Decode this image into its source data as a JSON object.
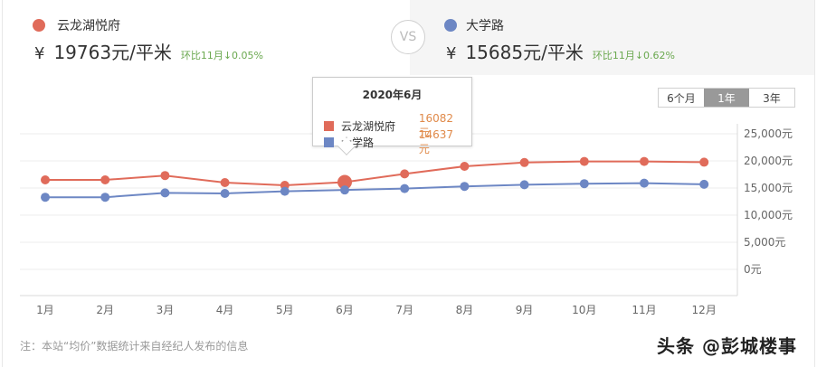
{
  "compare": {
    "left": {
      "name": "云龙湖悦府",
      "currency": "¥",
      "price": "19763元/平米",
      "change": "环比11月↓0.05%",
      "color": "#e06b5a"
    },
    "vs_label": "VS",
    "right": {
      "name": "大学路",
      "currency": "¥",
      "price": "15685元/平米",
      "change": "环比11月↓0.62%",
      "color": "#6d87c4"
    }
  },
  "range_tabs": [
    {
      "label": "6个月",
      "active": false
    },
    {
      "label": "1年",
      "active": true
    },
    {
      "label": "3年",
      "active": false
    }
  ],
  "tooltip": {
    "title": "2020年6月",
    "rows": [
      {
        "name": "云龙湖悦府",
        "value": "16082元",
        "color": "#e06b5a"
      },
      {
        "name": "大学路",
        "value": "14637元",
        "color": "#6d87c4"
      }
    ]
  },
  "note": "注：本站“均价”数据统计来自经纪人发布的信息",
  "watermark": "头条 @彭城楼事",
  "chart_data": {
    "type": "line",
    "title": "",
    "xlabel": "",
    "ylabel": "",
    "categories": [
      "1月",
      "2月",
      "3月",
      "4月",
      "5月",
      "6月",
      "7月",
      "8月",
      "9月",
      "10月",
      "11月",
      "12月"
    ],
    "series": [
      {
        "name": "云龙湖悦府",
        "color": "#e06b5a",
        "values": [
          16500,
          16500,
          17300,
          16000,
          15500,
          16082,
          17600,
          19000,
          19700,
          19900,
          19900,
          19763
        ]
      },
      {
        "name": "大学路",
        "color": "#6d87c4",
        "values": [
          13300,
          13300,
          14100,
          14000,
          14400,
          14637,
          14900,
          15300,
          15600,
          15800,
          15900,
          15685
        ]
      }
    ],
    "y_ticks": [
      "0元",
      "5,000元",
      "10,000元",
      "15,000元",
      "20,000元",
      "25,000元"
    ],
    "ylim": [
      0,
      25000
    ],
    "y_axis_position": "right",
    "grid": true,
    "highlighted_index": 5
  }
}
